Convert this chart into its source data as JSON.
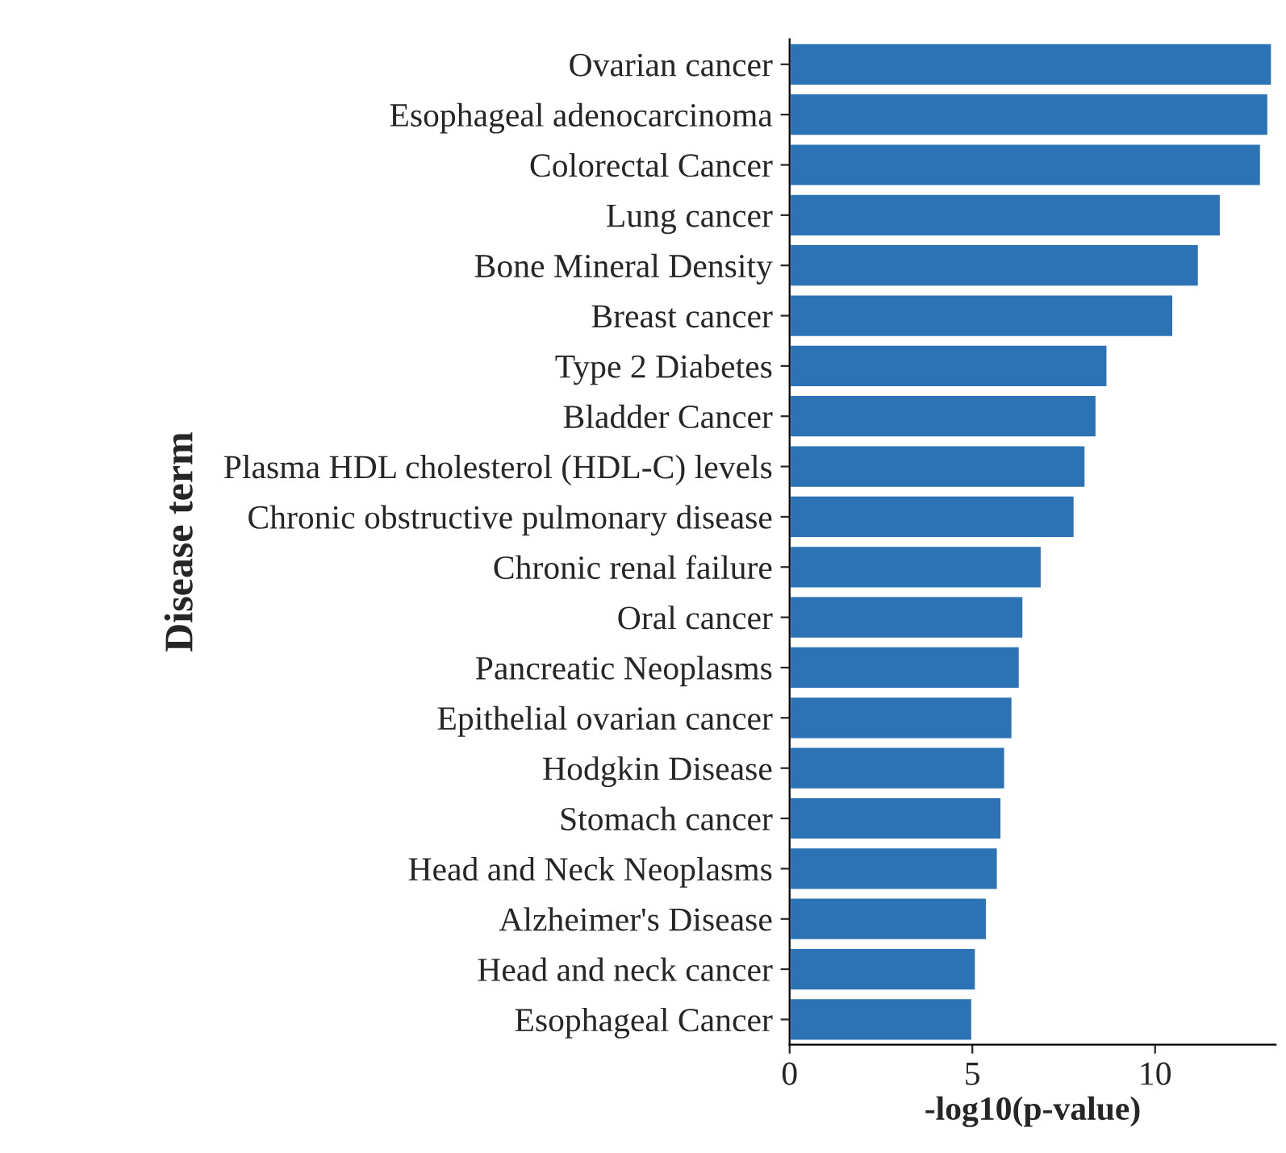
{
  "chart_data": {
    "type": "bar",
    "orientation": "horizontal",
    "xlabel": "-log10(p-value)",
    "ylabel": "Disease term",
    "categories": [
      "Ovarian cancer",
      "Esophageal adenocarcinoma",
      "Colorectal Cancer",
      "Lung cancer",
      "Bone Mineral Density",
      "Breast cancer",
      "Type 2 Diabetes",
      "Bladder Cancer",
      "Plasma HDL cholesterol (HDL-C) levels",
      "Chronic obstructive pulmonary disease",
      "Chronic renal failure",
      "Oral cancer",
      "Pancreatic Neoplasms",
      "Epithelial ovarian cancer",
      "Hodgkin Disease",
      "Stomach cancer",
      "Head and Neck Neoplasms",
      "Alzheimer's Disease",
      "Head and neck cancer",
      "Esophageal Cancer"
    ],
    "values": [
      13.2,
      13.1,
      12.9,
      11.8,
      11.2,
      10.5,
      8.7,
      8.4,
      8.1,
      7.8,
      6.9,
      6.4,
      6.3,
      6.1,
      5.9,
      5.8,
      5.7,
      5.4,
      5.1,
      5.0
    ],
    "color": "#2b73b4",
    "xlim": [
      0,
      13.3
    ],
    "xticks": [
      0,
      5,
      10
    ],
    "grid": false,
    "legend": false
  }
}
